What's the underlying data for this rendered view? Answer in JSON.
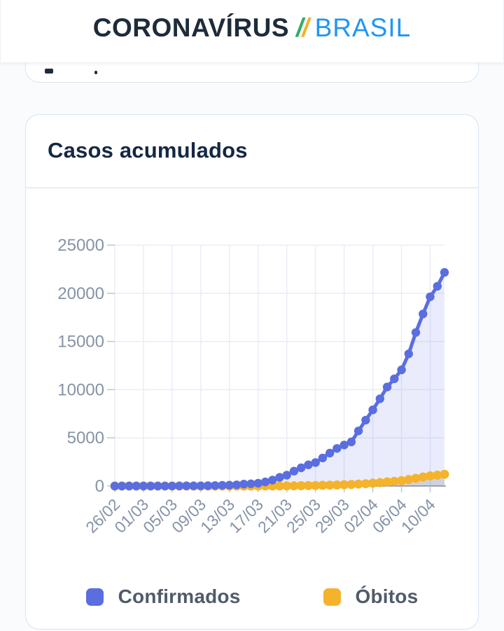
{
  "header": {
    "brand_primary": "CORONAVÍRUS",
    "slash": "/",
    "brand_secondary": "BRASIL",
    "colors": {
      "brand_primary": "#1d2b3a",
      "slash_green": "#2fad63",
      "slash_yellow": "#f2b230",
      "brand_secondary": "#2196f3"
    }
  },
  "card": {
    "title": "Casos acumulados"
  },
  "chart_data": {
    "type": "line",
    "title": "Casos acumulados",
    "x": [
      "26/02",
      "27/02",
      "28/02",
      "29/02",
      "01/03",
      "02/03",
      "03/03",
      "04/03",
      "05/03",
      "06/03",
      "07/03",
      "08/03",
      "09/03",
      "10/03",
      "11/03",
      "12/03",
      "13/03",
      "14/03",
      "15/03",
      "16/03",
      "17/03",
      "18/03",
      "19/03",
      "20/03",
      "21/03",
      "22/03",
      "23/03",
      "24/03",
      "25/03",
      "26/03",
      "27/03",
      "28/03",
      "29/03",
      "30/03",
      "31/03",
      "01/04",
      "02/04",
      "03/04",
      "04/04",
      "05/04",
      "06/04",
      "07/04",
      "08/04",
      "09/04",
      "10/04",
      "11/04",
      "12/04"
    ],
    "series": [
      {
        "name": "Confirmados",
        "color": "#5a6ee0",
        "fill": "rgba(92,110,228,0.13)",
        "values": [
          1,
          1,
          1,
          2,
          2,
          2,
          2,
          3,
          7,
          13,
          19,
          25,
          25,
          34,
          52,
          77,
          98,
          121,
          200,
          234,
          291,
          428,
          621,
          904,
          1128,
          1546,
          1891,
          2201,
          2433,
          2915,
          3417,
          3904,
          4256,
          4579,
          5717,
          6836,
          7910,
          9056,
          10278,
          11130,
          12056,
          13717,
          15927,
          17857,
          19638,
          20727,
          22169
        ]
      },
      {
        "name": "Óbitos",
        "color": "#f4b32b",
        "fill": "rgba(100,105,115,0.20)",
        "values": [
          0,
          0,
          0,
          0,
          0,
          0,
          0,
          0,
          0,
          0,
          0,
          0,
          0,
          0,
          0,
          0,
          0,
          0,
          0,
          0,
          1,
          4,
          6,
          11,
          18,
          25,
          34,
          46,
          57,
          77,
          92,
          111,
          136,
          159,
          201,
          240,
          299,
          359,
          431,
          486,
          553,
          667,
          800,
          941,
          1056,
          1124,
          1223
        ]
      }
    ],
    "x_tick_labels": [
      "26/02",
      "01/03",
      "05/03",
      "09/03",
      "13/03",
      "17/03",
      "21/03",
      "25/03",
      "29/03",
      "02/04",
      "06/04",
      "10/04"
    ],
    "x_tick_indices": [
      0,
      4,
      8,
      12,
      16,
      20,
      24,
      28,
      32,
      36,
      40,
      44
    ],
    "y_ticks": [
      0,
      5000,
      10000,
      15000,
      20000,
      25000
    ],
    "ylim": [
      0,
      25000
    ],
    "grid": true,
    "legend_position": "bottom",
    "axis_label_color": "#8593a6",
    "gridline_color": "#e9edf6",
    "baseline_color": "#a9adb3",
    "tick_mark_color": "#bcc6d4"
  }
}
